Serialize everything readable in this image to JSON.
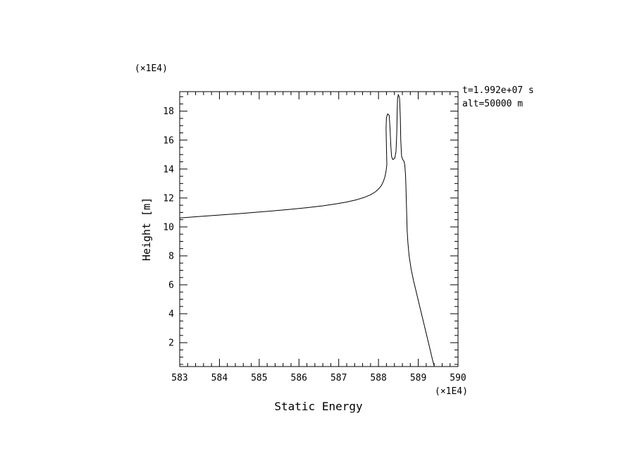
{
  "page": {
    "background": "#ffffff",
    "ink": "#000000"
  },
  "chart_data": {
    "type": "line",
    "title": "",
    "xlabel": "Static Energy",
    "ylabel": "Height [m]",
    "x_scale_note": "(×1E4)",
    "y_scale_note": "(×1E4)",
    "xlim": [
      583,
      590
    ],
    "ylim": [
      0.35,
      19.35
    ],
    "x_major_ticks": [
      583,
      584,
      585,
      586,
      587,
      588,
      589,
      590
    ],
    "x_minor_step": 0.2,
    "y_major_ticks": [
      2,
      4,
      6,
      8,
      10,
      12,
      14,
      16,
      18
    ],
    "y_minor_step": 0.5,
    "grid": false,
    "legend": "none",
    "annotations": [
      "t=1.992e+07 s",
      "alt=50000 m"
    ],
    "series": [
      {
        "name": "static-energy-profile",
        "color": "#000000",
        "points": [
          [
            583.0,
            10.62
          ],
          [
            583.4,
            10.7
          ],
          [
            583.8,
            10.78
          ],
          [
            584.2,
            10.86
          ],
          [
            584.6,
            10.94
          ],
          [
            585.0,
            11.03
          ],
          [
            585.4,
            11.12
          ],
          [
            585.8,
            11.22
          ],
          [
            586.2,
            11.33
          ],
          [
            586.6,
            11.46
          ],
          [
            586.9,
            11.58
          ],
          [
            587.2,
            11.72
          ],
          [
            587.45,
            11.88
          ],
          [
            587.65,
            12.05
          ],
          [
            587.8,
            12.22
          ],
          [
            587.92,
            12.42
          ],
          [
            588.0,
            12.62
          ],
          [
            588.07,
            12.85
          ],
          [
            588.12,
            13.12
          ],
          [
            588.16,
            13.45
          ],
          [
            588.19,
            13.85
          ],
          [
            588.21,
            14.3
          ],
          [
            588.2,
            15.5
          ],
          [
            588.19,
            16.8
          ],
          [
            588.2,
            17.55
          ],
          [
            588.23,
            17.82
          ],
          [
            588.27,
            17.7
          ],
          [
            588.29,
            16.8
          ],
          [
            588.31,
            15.6
          ],
          [
            588.33,
            14.85
          ],
          [
            588.36,
            14.65
          ],
          [
            588.41,
            14.75
          ],
          [
            588.44,
            15.2
          ],
          [
            588.46,
            16.5
          ],
          [
            588.47,
            18.0
          ],
          [
            588.48,
            18.9
          ],
          [
            588.5,
            19.15
          ],
          [
            588.53,
            18.9
          ],
          [
            588.55,
            17.5
          ],
          [
            588.56,
            16.0
          ],
          [
            588.58,
            14.9
          ],
          [
            588.61,
            14.65
          ],
          [
            588.64,
            14.55
          ],
          [
            588.66,
            14.3
          ],
          [
            588.68,
            13.6
          ],
          [
            588.69,
            12.8
          ],
          [
            588.7,
            11.8
          ],
          [
            588.71,
            10.8
          ],
          [
            588.72,
            9.8
          ],
          [
            588.74,
            8.9
          ],
          [
            588.77,
            8.0
          ],
          [
            588.82,
            7.1
          ],
          [
            588.88,
            6.3
          ],
          [
            588.95,
            5.5
          ],
          [
            589.02,
            4.7
          ],
          [
            589.09,
            3.9
          ],
          [
            589.16,
            3.1
          ],
          [
            589.23,
            2.3
          ],
          [
            589.3,
            1.5
          ],
          [
            589.36,
            0.8
          ],
          [
            589.4,
            0.38
          ]
        ]
      }
    ]
  }
}
